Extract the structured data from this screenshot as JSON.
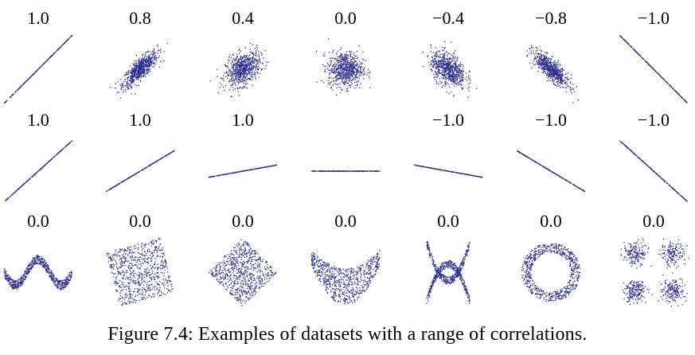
{
  "colors": {
    "points": "#2e2e8f",
    "text": "#000000",
    "background": "#ffffff"
  },
  "caption": "Figure 7.4: Examples of datasets with a range of correlations.",
  "chart_data": {
    "type": "scatter",
    "rows": [
      [
        {
          "label": "1.0",
          "shape": "line",
          "slope": 1.0,
          "noise": 0.0
        },
        {
          "label": "0.8",
          "shape": "gaussian",
          "r": 0.8
        },
        {
          "label": "0.4",
          "shape": "gaussian",
          "r": 0.4
        },
        {
          "label": "0.0",
          "shape": "gaussian",
          "r": 0.0
        },
        {
          "label": "−0.4",
          "shape": "gaussian",
          "r": -0.4
        },
        {
          "label": "−0.8",
          "shape": "gaussian",
          "r": -0.8
        },
        {
          "label": "−1.0",
          "shape": "line",
          "slope": -1.0,
          "noise": 0.0
        }
      ],
      [
        {
          "label": "1.0",
          "shape": "line",
          "slope": 0.9
        },
        {
          "label": "1.0",
          "shape": "line",
          "slope": 0.6
        },
        {
          "label": "1.0",
          "shape": "line",
          "slope": 0.18
        },
        {
          "label": "",
          "shape": "line",
          "slope": 0.0
        },
        {
          "label": "−1.0",
          "shape": "line",
          "slope": -0.18
        },
        {
          "label": "−1.0",
          "shape": "line",
          "slope": -0.6
        },
        {
          "label": "−1.0",
          "shape": "line",
          "slope": -0.9
        }
      ],
      [
        {
          "label": "0.0",
          "shape": "wave"
        },
        {
          "label": "0.0",
          "shape": "rotated-square"
        },
        {
          "label": "0.0",
          "shape": "diamond"
        },
        {
          "label": "0.0",
          "shape": "parabola"
        },
        {
          "label": "0.0",
          "shape": "x-cross"
        },
        {
          "label": "0.0",
          "shape": "ring"
        },
        {
          "label": "0.0",
          "shape": "four-clusters"
        }
      ]
    ]
  }
}
